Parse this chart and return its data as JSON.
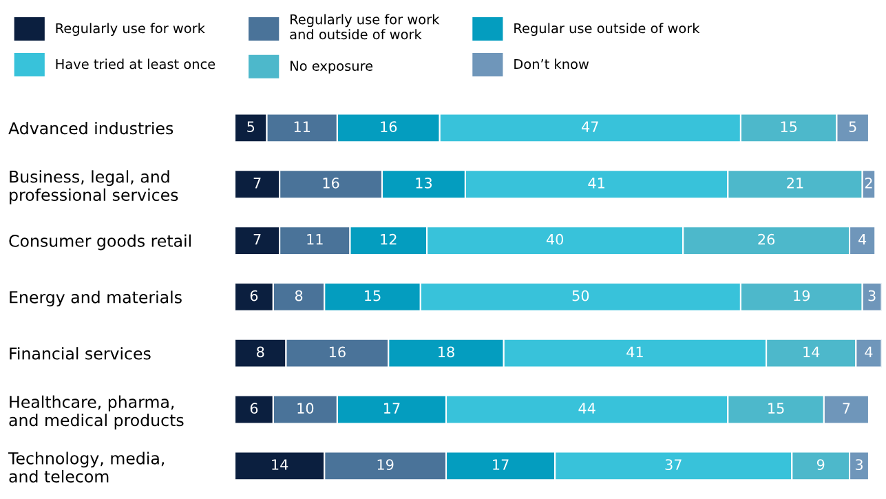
{
  "chart_data": {
    "type": "bar",
    "orientation": "horizontal",
    "stacked": true,
    "data_labels": true,
    "legend": "top",
    "grid": false,
    "tick_labels": "y",
    "categories": [
      "Advanced industries",
      "Business, legal, and\nprofessional services",
      "Consumer goods retail",
      "Energy and materials",
      "Financial services",
      "Healthcare, pharma,\nand medical products",
      "Technology, media,\nand telecom"
    ],
    "series": [
      {
        "name": "Regularly use for work",
        "color": "#0b1f3f",
        "values": [
          5,
          7,
          7,
          6,
          8,
          6,
          14
        ]
      },
      {
        "name": "Regularly use for work\nand outside of work",
        "color": "#4a7399",
        "values": [
          11,
          16,
          11,
          8,
          16,
          10,
          19
        ]
      },
      {
        "name": "Regular use outside of work",
        "color": "#049dbf",
        "values": [
          16,
          13,
          12,
          15,
          18,
          17,
          17
        ]
      },
      {
        "name": "Have tried at least once",
        "color": "#38c2da",
        "values": [
          47,
          41,
          40,
          50,
          41,
          44,
          37
        ]
      },
      {
        "name": "No exposure",
        "color": "#4db8cb",
        "values": [
          15,
          21,
          26,
          19,
          14,
          15,
          9
        ]
      },
      {
        "name": "Don’t know",
        "color": "#6f96ba",
        "values": [
          5,
          2,
          4,
          3,
          4,
          7,
          3
        ]
      }
    ]
  }
}
